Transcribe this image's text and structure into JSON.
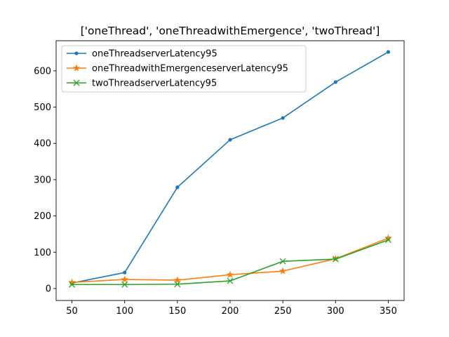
{
  "chart_data": {
    "type": "line",
    "title": "['oneThread', 'oneThreadwithEmergence', 'twoThread']",
    "xlabel": "",
    "ylabel": "",
    "x": [
      50,
      100,
      150,
      200,
      250,
      300,
      350
    ],
    "x_ticks": [
      50,
      100,
      150,
      200,
      250,
      300,
      350
    ],
    "y_ticks": [
      0,
      100,
      200,
      300,
      400,
      500,
      600
    ],
    "xlim": [
      35,
      365
    ],
    "ylim": [
      -33,
      683
    ],
    "grid": false,
    "legend_position": "top-left",
    "series": [
      {
        "name": "oneThreadserverLatency95",
        "color": "#1f77b4",
        "marker": "point",
        "values": [
          15,
          44,
          279,
          410,
          470,
          569,
          652
        ]
      },
      {
        "name": "oneThreadwithEmergenceserverLatency95",
        "color": "#ff7f0e",
        "marker": "star",
        "values": [
          17,
          25,
          23,
          38,
          48,
          82,
          139
        ]
      },
      {
        "name": "twoThreadserverLatency95",
        "color": "#2ca02c",
        "marker": "x",
        "values": [
          11,
          11,
          12,
          21,
          75,
          81,
          134
        ]
      }
    ]
  }
}
